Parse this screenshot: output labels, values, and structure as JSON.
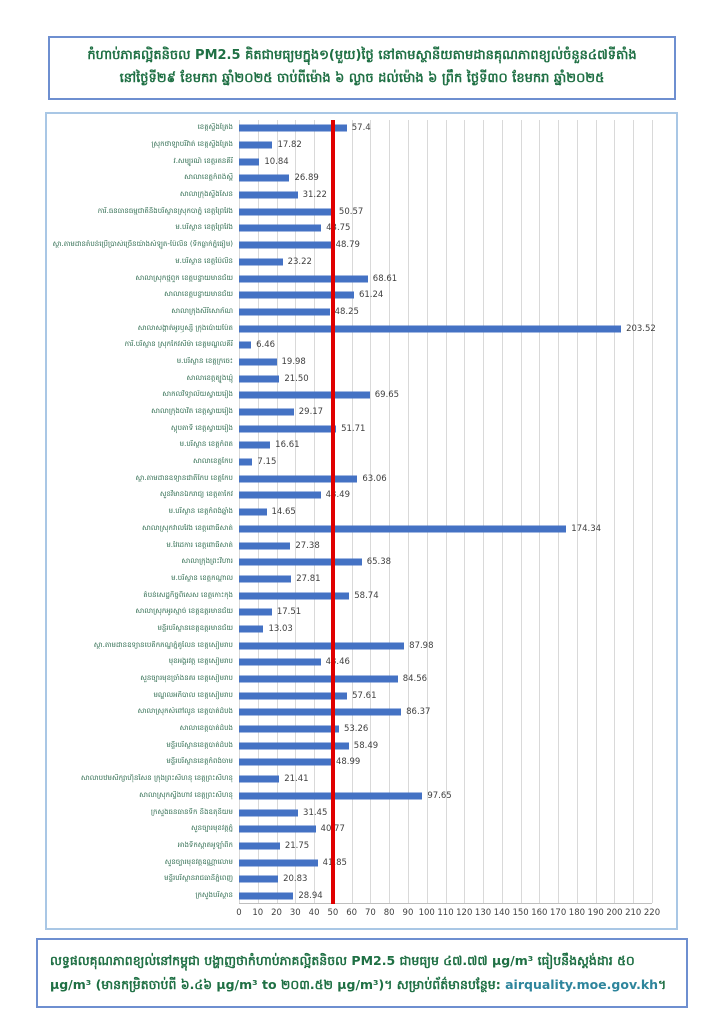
{
  "title": {
    "line1": "កំហាប់ភាគល្អិតនិចល PM2.5 គិតជាមធ្យមក្នុង១(មួយ)ថ្ងៃ នៅតាមស្ថានីយតាមដានគុណភាពខ្យល់ចំនួន៤៧ទីតាំង",
    "line2": "នៅថ្ងៃទី២៩ ខែមករា ឆ្នាំ២០២៥ ចាប់ពីម៉ោង ៦ ល្ងាច ដល់ម៉ោង ៦ ព្រឹក ថ្ងៃទី៣០ ខែមករា ឆ្នាំ២០២៥"
  },
  "footer": {
    "pre_link": "លទ្ធផលគុណភាពខ្យល់នៅកម្ពុជា បង្ហាញថាកំហាប់ភាគល្អិតនិចល PM2.5 ជាមធ្យម ៤៧.៧៧ µg/m³ ធៀបនឹងស្តង់ដារ ៥០ µg/m³ (មានកម្រិតចាប់ពី ៦.៤៦ µg/m³ to ២០៣.៥២ µg/m³)។ សម្រាប់ព័ត៌មានបន្ថែម: ",
    "link": "airquality.moe.gov.kh",
    "post_link": "។"
  },
  "colors": {
    "bar": "#4472c4",
    "reference_line": "#e00000",
    "title_text": "#1f7044",
    "label_text": "#2e6b4f",
    "value_text": "#404040",
    "gridline": "#d9d9d9",
    "title_border": "#6e8fd0",
    "chart_border": "#a9c7e5",
    "link": "#2e859c"
  },
  "chart_data": {
    "type": "bar",
    "orientation": "horizontal",
    "title": "កំហាប់ភាគល្អិតនិចល PM2.5 គិតជាមធ្យមក្នុង១(មួយ)ថ្ងៃ នៅតាមស្ថានីយតាមដានគុណភាពខ្យល់ចំនួន៤៧ទីតាំង",
    "unit": "µg/m³",
    "xlim": [
      0,
      220
    ],
    "x_ticks": [
      0,
      10,
      20,
      30,
      40,
      50,
      60,
      70,
      80,
      90,
      100,
      110,
      120,
      130,
      140,
      150,
      160,
      170,
      180,
      190,
      200,
      210,
      220
    ],
    "grid": true,
    "legend": false,
    "reference_line": {
      "value": 50
    },
    "categories": [
      "ខេត្តស្ទឹងត្រែង",
      "ស្រុកថាឡាបរិវ៉ាត់ ខេត្តស្ទឹងត្រែង",
      "វ.សម្បូរណ៍ ខេត្តរតនគិរី",
      "សាលាខេត្តកំពង់ស្ពឺ",
      "សាលាក្រុងស្ទឹងសែន",
      "ការិ.ធនធានធម្មជាតិនិងបរិស្ថានស្រុកបាភ្នំ ខេត្តព្រៃវែង",
      "ម.បរិស្ថាន ខេត្តព្រៃវែង",
      "ស្ថា.តាមដានតំបន់ប្រើប្រាស់ច្រើនយ៉ាងសំឡូត-ប៉ៃលិន (ទឹកធ្លាក់ភ្នំធៀម)",
      "ម.បរិស្ថាន ខេត្តប៉ៃលិន",
      "សាលាស្រុកថ្មពួក ខេត្តបន្ទាយមានជ័យ",
      "សាលាខេត្តបន្ទាយមានជ័យ",
      "សាលាក្រុងសិរីសោភ័ណ",
      "សាលាសង្កាត់អូរឫស្សី ក្រុងប៉ោយប៉ែត",
      "ការិ.បរិស្ថាន ស្រុកកែវសីម៉ា ខេត្តមណ្ឌលគិរី",
      "ម.បរិស្ថាន ខេត្តក្រចេះ",
      "សាលាខេត្តត្បូងឃ្មុំ",
      "សាកលវិទ្យាល័យស្វាយរៀង",
      "សាលាក្រុងបាវិត ខេត្តស្វាយរៀង",
      "ស្តុបតាទី ខេត្តស្វាយរៀង",
      "ម.បរិស្ថាន ខេត្តកំពត",
      "សាលាខេត្តកែប",
      "ស្ថា.តាមដានឧទ្យានជាតិកែប ខេត្តកែប",
      "សួនវិមានឯករាជ្យ ខេត្តតាកែវ",
      "ម.បរិស្ថាន ខេត្តកំពង់ឆ្នាំង",
      "សាលាស្រុកវាលវែង ខេត្តពោធិ៍សាត់",
      "ម.វៃដេការ ខេត្តពោធិ៍សាត់",
      "សាលាក្រុងព្រះវិហារ",
      "ម.បរិស្ថាន ខេត្តកណ្តាល",
      "តំបន់សេដ្ឋកិច្ចពិសេស ខេត្តកោះកុង",
      "សាលាស្រុកអូរស្មាច់ ខេត្តឧត្តរមានជ័យ",
      "មន្ទីរបរិស្ថានខេត្តឧត្តរមានជ័យ",
      "ស្ថា.តាមដានឧទ្យានបេតិកភណ្ឌភ្នំគូលែន ខេត្តសៀមរាប",
      "មុខអង្គរវត្ត ខេត្តសៀមរាប",
      "សួនច្បារមុខច្រាំងនគរ ខេត្តសៀមរាប",
      "មណ្ឌលអភិបាល ខេត្តសៀមរាប",
      "សាលាស្រុកសំពៅលូន ខេត្តបាត់ដំបង",
      "សាលាខេត្តបាត់ដំបង",
      "មន្ទីរបរិស្ថានខេត្តបាត់ដំបង",
      "មន្ទីរបរិស្ថានខេត្តកំពង់ចាម",
      "សាលាបឋមសិក្សាហ៊ុនសែន ក្រុងព្រះសីហនុ ខេត្តព្រះសីហនុ",
      "សាលាស្រុកស្ទឹងហាវ ខេត្តព្រះសីហនុ",
      "ក្រសួងធនធានទឹក និងឧតុនិយម",
      "សួនច្បារមុខវត្តភ្នំ",
      "អាងទឹកស្តាតអូឡាំពិក",
      "សួនច្បារមុខវត្តឧណ្ណាលោម",
      "មន្ទីរបរិស្ថានរាជធានីភ្នំពេញ",
      "ក្រសួងបរិស្ថាន"
    ],
    "values": [
      57.4,
      17.82,
      10.84,
      26.89,
      31.22,
      50.57,
      43.75,
      48.79,
      23.22,
      68.61,
      61.24,
      48.25,
      203.52,
      6.46,
      19.98,
      21.5,
      69.65,
      29.17,
      51.71,
      16.61,
      7.15,
      63.06,
      43.49,
      14.65,
      174.34,
      27.38,
      65.38,
      27.81,
      58.74,
      17.51,
      13.03,
      87.98,
      43.46,
      84.56,
      57.61,
      86.37,
      53.26,
      58.49,
      48.99,
      21.41,
      97.65,
      31.45,
      40.77,
      21.75,
      41.85,
      20.83,
      28.94
    ],
    "value_labels": [
      "57.4",
      "17.82",
      "10.84",
      "26.89",
      "31.22",
      "50.57",
      "43.75",
      "48.79",
      "23.22",
      "68.61",
      "61.24",
      "48.25",
      "203.52",
      "6.46",
      "19.98",
      "21.50",
      "69.65",
      "29.17",
      "51.71",
      "16.61",
      "7.15",
      "63.06",
      "43.49",
      "14.65",
      "174.34",
      "27.38",
      "65.38",
      "27.81",
      "58.74",
      "17.51",
      "13.03",
      "87.98",
      "43.46",
      "84.56",
      "57.61",
      "86.37",
      "53.26",
      "58.49",
      "48.99",
      "21.41",
      "97.65",
      "31.45",
      "40.77",
      "21.75",
      "41.85",
      "20.83",
      "28.94"
    ]
  }
}
